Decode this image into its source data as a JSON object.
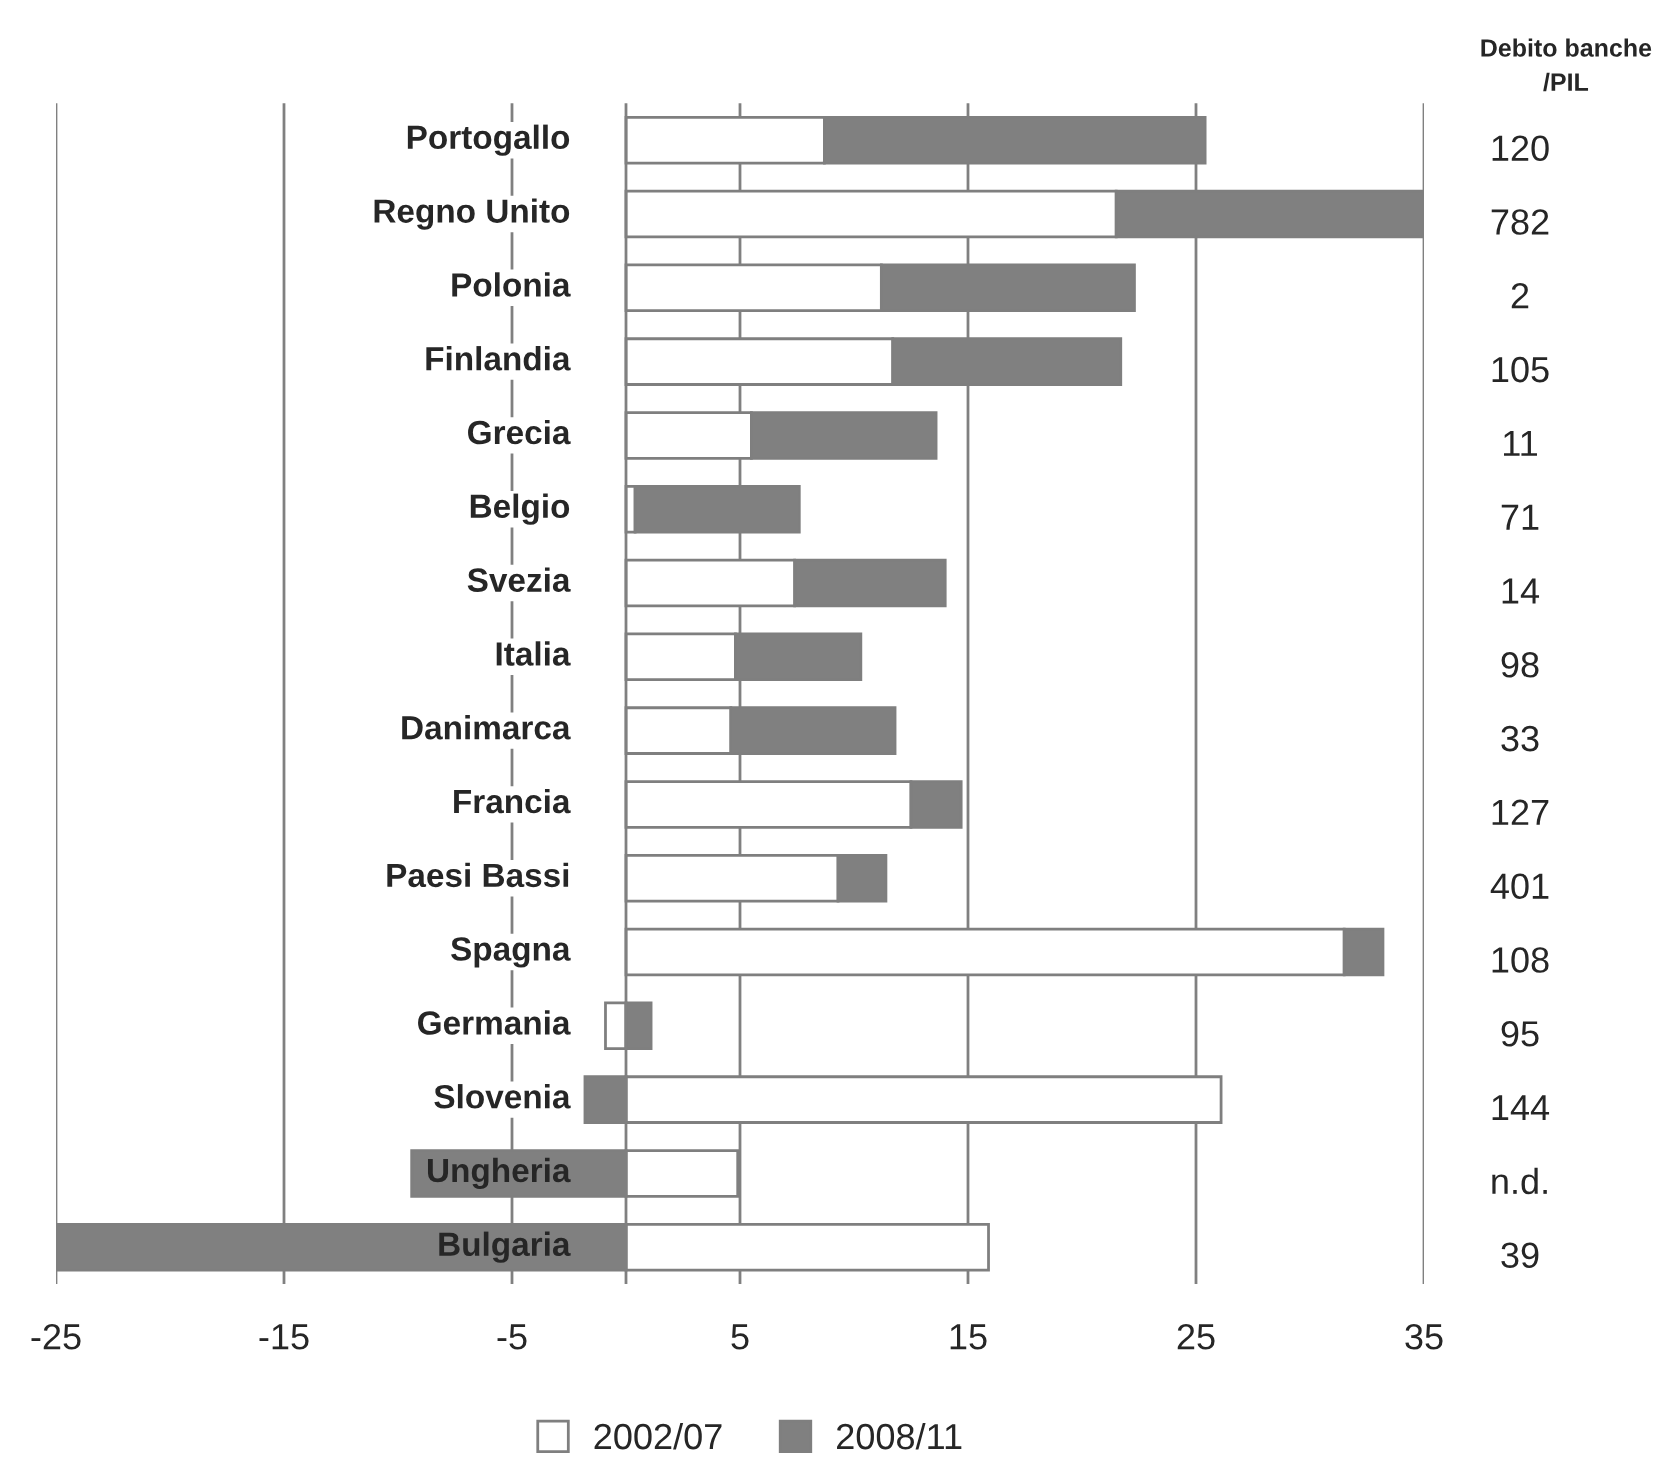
{
  "chart_data": {
    "type": "bar",
    "orientation": "horizontal",
    "stacked": true,
    "categories": [
      "Portogallo",
      "Regno Unito",
      "Polonia",
      "Finlandia",
      "Grecia",
      "Belgio",
      "Svezia",
      "Italia",
      "Danimarca",
      "Francia",
      "Paesi Bassi",
      "Spagna",
      "Germania",
      "Slovenia",
      "Ungheria",
      "Bulgaria"
    ],
    "series": [
      {
        "name": "2002/07",
        "color": "#ffffff",
        "values": [
          8.7,
          21.5,
          11.2,
          11.7,
          5.5,
          0.4,
          7.4,
          4.8,
          4.6,
          12.5,
          9.3,
          31.5,
          -0.9,
          26.1,
          4.9,
          15.9
        ]
      },
      {
        "name": "2008/11",
        "color": "#808080",
        "values": [
          16.7,
          13.5,
          11.1,
          10.0,
          8.1,
          7.2,
          6.6,
          5.5,
          7.2,
          2.2,
          2.1,
          1.7,
          1.1,
          -1.8,
          -9.4,
          -25.0
        ]
      }
    ],
    "xlim": [
      -25,
      35
    ],
    "xticks": [
      -25,
      -15,
      -5,
      5,
      15,
      25,
      35
    ],
    "grid": "x",
    "legend": "bottom",
    "annotations": [
      "Debito banche\n/PIL",
      "120",
      "782",
      "2",
      "105",
      "11",
      "71",
      "14",
      "98",
      "33",
      "127",
      "401",
      "108",
      "95",
      "144",
      "n.d.",
      "39"
    ]
  }
}
